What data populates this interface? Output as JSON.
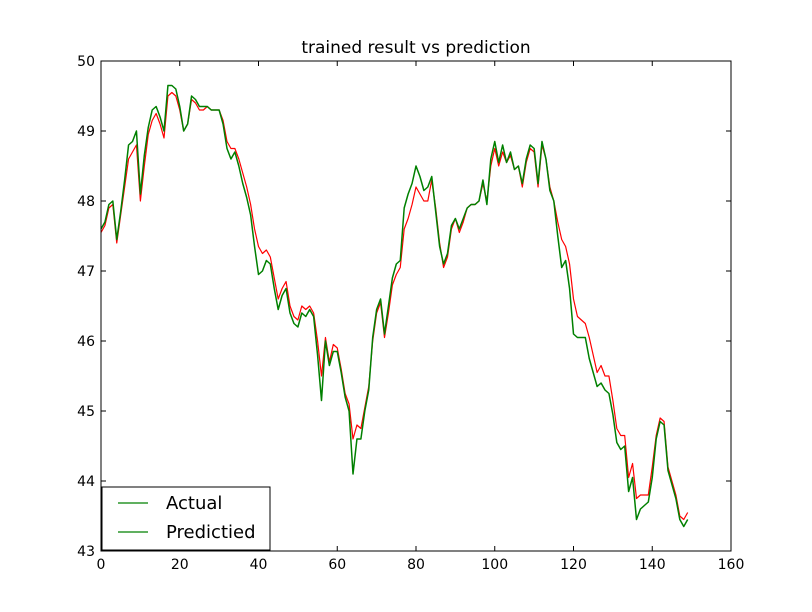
{
  "chart_data": {
    "type": "line",
    "title": "trained result vs prediction",
    "xlabel": "",
    "ylabel": "",
    "xlim": [
      0,
      160
    ],
    "ylim": [
      43,
      50
    ],
    "xticks": [
      0,
      20,
      40,
      60,
      80,
      100,
      120,
      140,
      160
    ],
    "yticks": [
      43,
      44,
      45,
      46,
      47,
      48,
      49,
      50
    ],
    "grid": false,
    "legend_position": "lower-left",
    "legend": [
      "Actual",
      "Predictied"
    ],
    "series": [
      {
        "name": "Actual",
        "color": "#ff0000",
        "y": [
          47.55,
          47.65,
          47.9,
          47.95,
          47.4,
          47.8,
          48.2,
          48.6,
          48.7,
          48.8,
          48.0,
          48.5,
          48.95,
          49.15,
          49.25,
          49.1,
          48.9,
          49.5,
          49.55,
          49.5,
          49.3,
          49.0,
          49.1,
          49.45,
          49.4,
          49.3,
          49.3,
          49.35,
          49.3,
          49.3,
          49.3,
          49.15,
          48.85,
          48.75,
          48.75,
          48.6,
          48.4,
          48.2,
          47.95,
          47.6,
          47.35,
          47.25,
          47.3,
          47.2,
          46.9,
          46.6,
          46.75,
          46.85,
          46.5,
          46.35,
          46.3,
          46.5,
          46.45,
          46.5,
          46.4,
          46.0,
          45.5,
          46.05,
          45.7,
          45.95,
          45.9,
          45.6,
          45.25,
          45.1,
          44.6,
          44.8,
          44.75,
          45.05,
          45.35,
          46.0,
          46.4,
          46.55,
          46.05,
          46.4,
          46.8,
          46.95,
          47.05,
          47.6,
          47.75,
          47.95,
          48.2,
          48.1,
          48.0,
          48.0,
          48.3,
          47.9,
          47.4,
          47.05,
          47.2,
          47.6,
          47.75,
          47.55,
          47.7,
          47.9,
          47.95,
          47.95,
          48.0,
          48.25,
          48.0,
          48.5,
          48.75,
          48.5,
          48.7,
          48.55,
          48.65,
          48.45,
          48.5,
          48.2,
          48.55,
          48.75,
          48.7,
          48.2,
          48.8,
          48.6,
          48.2,
          48.0,
          47.7,
          47.45,
          47.35,
          47.1,
          46.6,
          46.35,
          46.3,
          46.25,
          46.05,
          45.8,
          45.55,
          45.65,
          45.5,
          45.5,
          45.15,
          44.75,
          44.65,
          44.65,
          44.05,
          44.25,
          43.75,
          43.8,
          43.8,
          43.8,
          44.2,
          44.65,
          44.9,
          44.85,
          44.2,
          44.0,
          43.8,
          43.5,
          43.45,
          43.55
        ]
      },
      {
        "name": "Predictied",
        "color": "#008000",
        "y": [
          47.6,
          47.7,
          47.95,
          48.0,
          47.45,
          47.85,
          48.3,
          48.8,
          48.85,
          49.0,
          48.1,
          48.65,
          49.05,
          49.3,
          49.35,
          49.2,
          49.0,
          49.65,
          49.65,
          49.6,
          49.35,
          49.0,
          49.1,
          49.5,
          49.45,
          49.35,
          49.35,
          49.35,
          49.3,
          49.3,
          49.3,
          49.1,
          48.75,
          48.6,
          48.7,
          48.5,
          48.25,
          48.05,
          47.8,
          47.35,
          46.95,
          47.0,
          47.15,
          47.1,
          46.75,
          46.45,
          46.65,
          46.75,
          46.4,
          46.25,
          46.2,
          46.4,
          46.35,
          46.45,
          46.35,
          45.8,
          45.15,
          46.0,
          45.65,
          45.85,
          45.85,
          45.55,
          45.2,
          45.0,
          44.1,
          44.6,
          44.6,
          45.0,
          45.3,
          46.05,
          46.45,
          46.6,
          46.1,
          46.5,
          46.9,
          47.1,
          47.15,
          47.9,
          48.1,
          48.25,
          48.5,
          48.35,
          48.15,
          48.2,
          48.35,
          47.85,
          47.35,
          47.1,
          47.25,
          47.65,
          47.75,
          47.6,
          47.75,
          47.9,
          47.95,
          47.95,
          48.0,
          48.3,
          47.95,
          48.6,
          48.85,
          48.55,
          48.8,
          48.55,
          48.7,
          48.45,
          48.5,
          48.25,
          48.6,
          48.8,
          48.75,
          48.25,
          48.85,
          48.6,
          48.15,
          48.0,
          47.5,
          47.05,
          47.15,
          46.75,
          46.1,
          46.05,
          46.05,
          46.05,
          45.75,
          45.55,
          45.35,
          45.4,
          45.3,
          45.25,
          44.95,
          44.55,
          44.45,
          44.5,
          43.85,
          44.05,
          43.45,
          43.6,
          43.65,
          43.7,
          44.05,
          44.6,
          44.85,
          44.8,
          44.15,
          43.95,
          43.75,
          43.45,
          43.35,
          43.45
        ]
      }
    ]
  }
}
